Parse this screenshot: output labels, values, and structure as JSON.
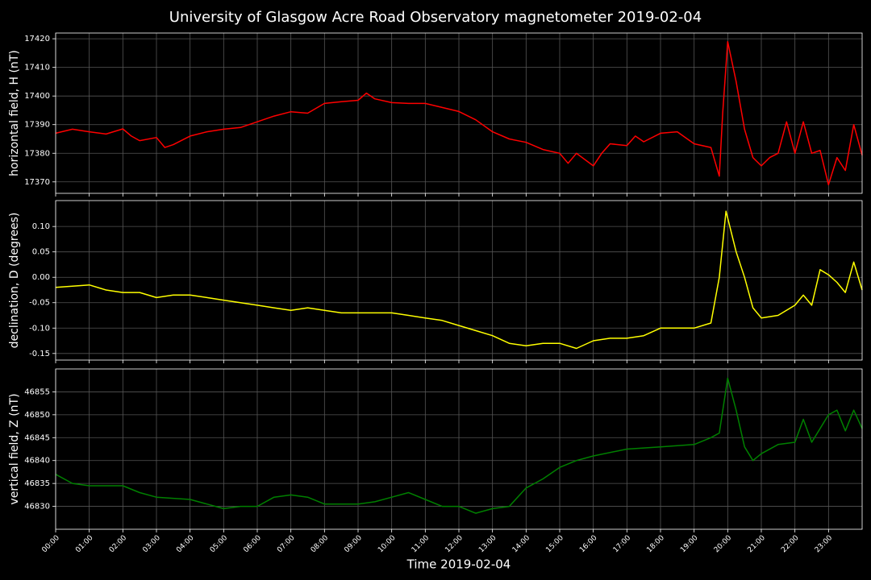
{
  "chart_data": [
    {
      "type": "line",
      "title": "University of Glasgow Acre Road Observatory magnetometer 2019-02-04",
      "ylabel": "horizontal field, H (nT)",
      "grid": true,
      "xlim": [
        0,
        24
      ],
      "ylim": [
        17366,
        17422
      ],
      "yticks": [
        17370,
        17380,
        17390,
        17400,
        17410,
        17420
      ],
      "x": [
        0,
        0.5,
        1,
        1.5,
        2,
        2.25,
        2.5,
        3,
        3.25,
        3.5,
        4,
        4.5,
        5,
        5.5,
        6,
        6.5,
        7,
        7.5,
        8,
        8.5,
        9,
        9.25,
        9.5,
        10,
        10.5,
        11,
        11.5,
        12,
        12.5,
        13,
        13.5,
        14,
        14.5,
        15,
        15.25,
        15.5,
        16,
        16.25,
        16.5,
        17,
        17.25,
        17.5,
        18,
        18.5,
        19,
        19.5,
        19.75,
        19.85,
        20,
        20.25,
        20.5,
        20.75,
        21,
        21.25,
        21.5,
        21.75,
        22,
        22.25,
        22.5,
        22.75,
        23,
        23.25,
        23.5,
        23.75,
        24
      ],
      "series": [
        {
          "color": "#ff0000",
          "values": [
            17387,
            17388.4,
            17387.5,
            17386.7,
            17388.5,
            17386,
            17384.4,
            17385.5,
            17382,
            17383,
            17386,
            17387.5,
            17388.4,
            17389,
            17391,
            17393,
            17394.5,
            17394,
            17397.4,
            17398,
            17398.5,
            17401,
            17399,
            17397.7,
            17397.4,
            17397.4,
            17396,
            17394.6,
            17391.7,
            17387.5,
            17385,
            17383.8,
            17381.3,
            17380,
            17376.5,
            17380,
            17375.6,
            17380,
            17383.3,
            17382.7,
            17386,
            17384,
            17387,
            17387.5,
            17383.3,
            17382,
            17372,
            17394,
            17419,
            17405,
            17388.4,
            17378.5,
            17375.6,
            17378.5,
            17380,
            17391,
            17380,
            17391,
            17380,
            17381,
            17369,
            17378.5,
            17374,
            17390,
            17379.3
          ]
        }
      ]
    },
    {
      "type": "line",
      "ylabel": "declination, D (degrees)",
      "grid": true,
      "xlim": [
        0,
        24
      ],
      "ylim": [
        -0.163,
        0.151
      ],
      "yticks": [
        {
          "value": -0.15,
          "label": "-0.15"
        },
        {
          "value": -0.1,
          "label": "-0.10"
        },
        {
          "value": -0.05,
          "label": "-0.05"
        },
        {
          "value": 0,
          "label": "0.00"
        },
        {
          "value": 0.05,
          "label": "0.05"
        },
        {
          "value": 0.1,
          "label": "0.10"
        }
      ],
      "x": [
        0,
        1,
        1.5,
        2,
        2.5,
        3,
        3.5,
        4,
        4.5,
        5,
        5.5,
        6,
        6.5,
        7,
        7.5,
        8,
        8.5,
        9,
        9.5,
        10,
        10.5,
        11,
        11.5,
        12,
        12.5,
        13,
        13.5,
        14,
        14.5,
        15,
        15.5,
        16,
        16.5,
        17,
        17.5,
        18,
        18.5,
        19,
        19.5,
        19.75,
        19.95,
        20.25,
        20.5,
        20.75,
        21,
        21.5,
        22,
        22.25,
        22.5,
        22.75,
        23,
        23.25,
        23.5,
        23.75,
        24
      ],
      "series": [
        {
          "color": "#ffff00",
          "values": [
            -0.02,
            -0.015,
            -0.025,
            -0.03,
            -0.03,
            -0.04,
            -0.035,
            -0.035,
            -0.04,
            -0.045,
            -0.05,
            -0.055,
            -0.06,
            -0.065,
            -0.06,
            -0.065,
            -0.07,
            -0.07,
            -0.07,
            -0.07,
            -0.075,
            -0.08,
            -0.085,
            -0.095,
            -0.105,
            -0.115,
            -0.13,
            -0.135,
            -0.13,
            -0.13,
            -0.14,
            -0.125,
            -0.12,
            -0.12,
            -0.115,
            -0.1,
            -0.1,
            -0.1,
            -0.09,
            0,
            0.13,
            0.05,
            0,
            -0.06,
            -0.08,
            -0.075,
            -0.055,
            -0.035,
            -0.055,
            0.015,
            0.005,
            -0.01,
            -0.03,
            0.03,
            -0.025
          ]
        }
      ]
    },
    {
      "type": "line",
      "ylabel": "vertical field, Z (nT)",
      "xlabel": "Time 2019-02-04",
      "grid": true,
      "xlim": [
        0,
        24
      ],
      "ylim": [
        46825,
        46860
      ],
      "yticks": [
        46830,
        46835,
        46840,
        46845,
        46850,
        46855
      ],
      "xticks": [
        {
          "value": 0,
          "label": "00:00"
        },
        {
          "value": 1,
          "label": "01:00"
        },
        {
          "value": 2,
          "label": "02:00"
        },
        {
          "value": 3,
          "label": "03:00"
        },
        {
          "value": 4,
          "label": "04:00"
        },
        {
          "value": 5,
          "label": "05:00"
        },
        {
          "value": 6,
          "label": "06:00"
        },
        {
          "value": 7,
          "label": "07:00"
        },
        {
          "value": 8,
          "label": "08:00"
        },
        {
          "value": 9,
          "label": "09:00"
        },
        {
          "value": 10,
          "label": "10:00"
        },
        {
          "value": 11,
          "label": "11:00"
        },
        {
          "value": 12,
          "label": "12:00"
        },
        {
          "value": 13,
          "label": "13:00"
        },
        {
          "value": 14,
          "label": "14:00"
        },
        {
          "value": 15,
          "label": "15:00"
        },
        {
          "value": 16,
          "label": "16:00"
        },
        {
          "value": 17,
          "label": "17:00"
        },
        {
          "value": 18,
          "label": "18:00"
        },
        {
          "value": 19,
          "label": "19:00"
        },
        {
          "value": 20,
          "label": "20:00"
        },
        {
          "value": 21,
          "label": "21:00"
        },
        {
          "value": 22,
          "label": "22:00"
        },
        {
          "value": 23,
          "label": "23:00"
        }
      ],
      "x": [
        0,
        0.5,
        1,
        2,
        2.5,
        3,
        4,
        4.5,
        5,
        5.5,
        6,
        6.5,
        7,
        7.5,
        8,
        9,
        9.5,
        10,
        10.5,
        11,
        11.5,
        12,
        12.5,
        13,
        13.5,
        14,
        14.5,
        15,
        15.5,
        16,
        17,
        18,
        19,
        19.5,
        19.75,
        20,
        20.25,
        20.5,
        20.75,
        21,
        21.5,
        22,
        22.25,
        22.5,
        23,
        23.25,
        23.5,
        23.75,
        24
      ],
      "series": [
        {
          "color": "#008000",
          "values": [
            46837,
            46835,
            46834.5,
            46834.5,
            46833,
            46832,
            46831.5,
            46830.5,
            46829.5,
            46830,
            46830,
            46832,
            46832.5,
            46832,
            46830.5,
            46830.5,
            46831,
            46832,
            46833,
            46831.5,
            46830,
            46830,
            46828.5,
            46829.5,
            46830,
            46834,
            46836,
            46838.5,
            46840,
            46841,
            46842.5,
            46843,
            46843.5,
            46845,
            46846,
            46858,
            46851,
            46843,
            46840,
            46841.5,
            46843.5,
            46844,
            46849,
            46844,
            46850,
            46851,
            46846.5,
            46851,
            46847
          ]
        }
      ]
    }
  ]
}
